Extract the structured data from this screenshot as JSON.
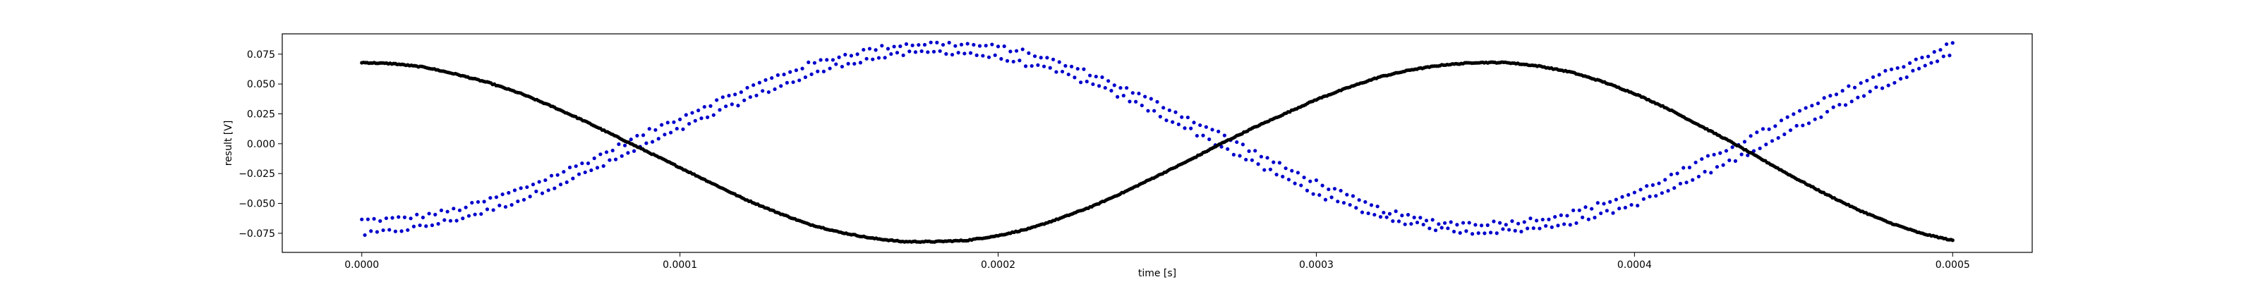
{
  "chart_data": {
    "type": "scatter",
    "title": "",
    "xlabel": "time [s]",
    "ylabel": "result [V]",
    "xlim": [
      -2.5e-05,
      0.000525
    ],
    "ylim": [
      -0.091,
      0.092
    ],
    "grid": false,
    "legend": "none",
    "x_ticks": [
      {
        "value": 0.0,
        "label": "0.0000"
      },
      {
        "value": 0.0001,
        "label": "0.0001"
      },
      {
        "value": 0.0002,
        "label": "0.0002"
      },
      {
        "value": 0.0003,
        "label": "0.0003"
      },
      {
        "value": 0.0004,
        "label": "0.0004"
      },
      {
        "value": 0.0005,
        "label": "0.0005"
      }
    ],
    "y_ticks": [
      {
        "value": -0.075,
        "label": "−0.075"
      },
      {
        "value": -0.05,
        "label": "−0.050"
      },
      {
        "value": -0.025,
        "label": "−0.025"
      },
      {
        "value": 0.0,
        "label": "0.000"
      },
      {
        "value": 0.025,
        "label": "0.025"
      },
      {
        "value": 0.05,
        "label": "0.050"
      },
      {
        "value": 0.075,
        "label": "0.075"
      }
    ],
    "series": [
      {
        "color": "#0000cc",
        "marker": "dot",
        "x": [
          0.0,
          1e-05,
          2e-05,
          3e-05,
          4e-05,
          5e-05,
          6e-05,
          7e-05,
          8e-05,
          9e-05,
          0.0001,
          0.00011,
          0.00012,
          0.00013,
          0.00014,
          0.00015,
          0.00016,
          0.00017,
          0.00018,
          0.00019,
          0.0002,
          0.00021,
          0.00022,
          0.00023,
          0.00024,
          0.00025,
          0.00026,
          0.00027,
          0.00028,
          0.00029,
          0.0003,
          0.00031,
          0.00032,
          0.00033,
          0.00034,
          0.00035,
          0.00036,
          0.00037,
          0.00038,
          0.00039,
          0.0004,
          0.00041,
          0.00042,
          0.00043,
          0.00044,
          0.00045,
          0.00046,
          0.00047,
          0.00048,
          0.00049,
          0.0005
        ],
        "y_upper": [
          -0.064,
          -0.063,
          -0.06,
          -0.055,
          -0.047,
          -0.038,
          -0.027,
          -0.016,
          -0.003,
          0.01,
          0.022,
          0.034,
          0.045,
          0.056,
          0.066,
          0.073,
          0.079,
          0.083,
          0.084,
          0.083,
          0.081,
          0.076,
          0.067,
          0.058,
          0.046,
          0.034,
          0.021,
          0.008,
          -0.006,
          -0.02,
          -0.032,
          -0.044,
          -0.055,
          -0.062,
          -0.066,
          -0.067,
          -0.066,
          -0.063,
          -0.058,
          -0.05,
          -0.041,
          -0.029,
          -0.016,
          -0.003,
          0.01,
          0.024,
          0.037,
          0.05,
          0.061,
          0.072,
          0.084
        ],
        "y_lower": [
          -0.076,
          -0.073,
          -0.069,
          -0.063,
          -0.056,
          -0.047,
          -0.036,
          -0.025,
          -0.013,
          0.0,
          0.012,
          0.024,
          0.036,
          0.047,
          0.056,
          0.066,
          0.071,
          0.075,
          0.077,
          0.076,
          0.072,
          0.066,
          0.059,
          0.049,
          0.038,
          0.025,
          0.012,
          -0.002,
          -0.016,
          -0.029,
          -0.042,
          -0.052,
          -0.061,
          -0.067,
          -0.072,
          -0.074,
          -0.073,
          -0.071,
          -0.066,
          -0.059,
          -0.051,
          -0.04,
          -0.028,
          -0.015,
          -0.002,
          0.012,
          0.026,
          0.039,
          0.051,
          0.062,
          0.076
        ]
      },
      {
        "color": "#000000",
        "marker": "dot",
        "x": [
          0.0,
          1e-05,
          2e-05,
          3e-05,
          4e-05,
          5e-05,
          6e-05,
          7e-05,
          8e-05,
          9e-05,
          0.0001,
          0.00011,
          0.00012,
          0.00013,
          0.00014,
          0.00015,
          0.00016,
          0.00017,
          0.00018,
          0.00019,
          0.0002,
          0.00021,
          0.00022,
          0.00023,
          0.00024,
          0.00025,
          0.00026,
          0.00027,
          0.00028,
          0.00029,
          0.0003,
          0.00031,
          0.00032,
          0.00033,
          0.00034,
          0.00035,
          0.00036,
          0.00037,
          0.00038,
          0.00039,
          0.0004,
          0.00041,
          0.00042,
          0.00043,
          0.00044,
          0.00045,
          0.00046,
          0.00047,
          0.00048,
          0.00049,
          0.0005
        ],
        "y": [
          0.068,
          0.067,
          0.064,
          0.058,
          0.051,
          0.042,
          0.031,
          0.019,
          0.006,
          -0.007,
          -0.02,
          -0.033,
          -0.046,
          -0.057,
          -0.067,
          -0.074,
          -0.079,
          -0.082,
          -0.082,
          -0.081,
          -0.077,
          -0.071,
          -0.062,
          -0.052,
          -0.04,
          -0.027,
          -0.014,
          0.0,
          0.013,
          0.025,
          0.037,
          0.047,
          0.056,
          0.062,
          0.066,
          0.068,
          0.068,
          0.065,
          0.06,
          0.052,
          0.042,
          0.03,
          0.016,
          0.002,
          -0.013,
          -0.028,
          -0.042,
          -0.055,
          -0.066,
          -0.075,
          -0.081
        ]
      }
    ]
  }
}
